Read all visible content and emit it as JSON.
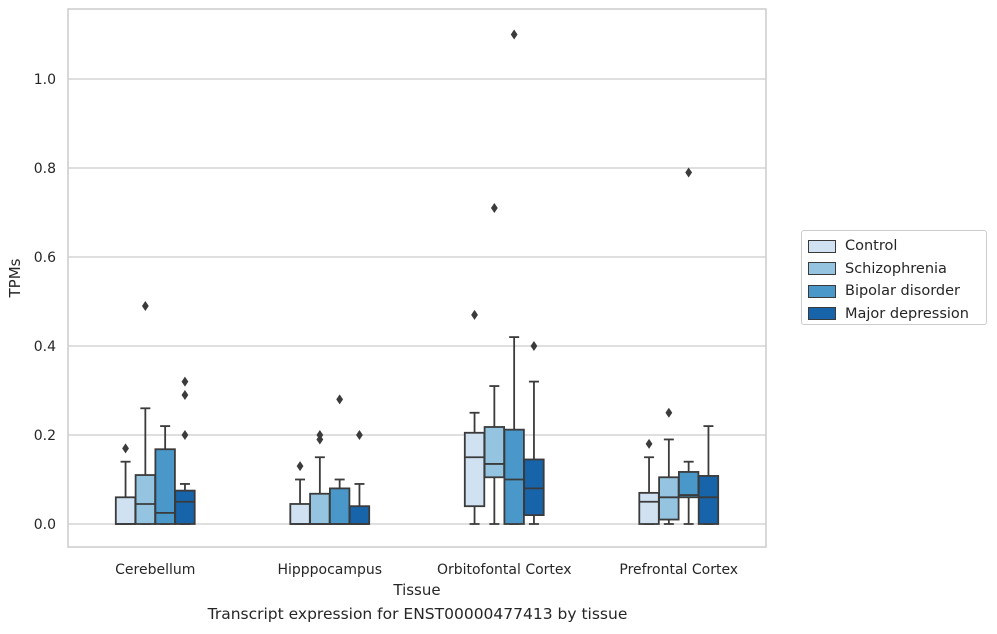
{
  "chart_data": {
    "type": "boxplot",
    "xlabel": "Tissue",
    "ylabel": "TPMs",
    "caption": "Transcript expression for ENST00000477413 by tissue",
    "ylim": [
      -0.055,
      1.165
    ],
    "yticks": [
      0.0,
      0.2,
      0.4,
      0.6,
      0.8,
      1.0
    ],
    "ytick_labels": [
      "0.0",
      "0.2",
      "0.4",
      "0.6",
      "0.8",
      "1.0"
    ],
    "grid": "horizontal",
    "legend_position": "right",
    "categories": [
      "Cerebellum",
      "Hipppocampus",
      "Orbitofontal Cortex",
      "Prefrontal Cortex"
    ],
    "series": [
      {
        "name": "Control",
        "color": "#d0e1f2",
        "boxes": [
          {
            "whislo": 0.0,
            "q1": 0.0,
            "med": 0.0,
            "q3": 0.06,
            "whishi": 0.14,
            "fliers": [
              0.17
            ]
          },
          {
            "whislo": 0.0,
            "q1": 0.0,
            "med": 0.0,
            "q3": 0.045,
            "whishi": 0.1,
            "fliers": [
              0.13
            ]
          },
          {
            "whislo": 0.0,
            "q1": 0.04,
            "med": 0.15,
            "q3": 0.205,
            "whishi": 0.25,
            "fliers": [
              0.47
            ]
          },
          {
            "whislo": 0.0,
            "q1": 0.0,
            "med": 0.05,
            "q3": 0.07,
            "whishi": 0.15,
            "fliers": [
              0.18
            ]
          }
        ]
      },
      {
        "name": "Schizophrenia",
        "color": "#94c4df",
        "boxes": [
          {
            "whislo": 0.0,
            "q1": 0.0,
            "med": 0.045,
            "q3": 0.11,
            "whishi": 0.26,
            "fliers": [
              0.49
            ]
          },
          {
            "whislo": 0.0,
            "q1": 0.0,
            "med": 0.0,
            "q3": 0.068,
            "whishi": 0.15,
            "fliers": [
              0.19,
              0.2
            ]
          },
          {
            "whislo": 0.0,
            "q1": 0.105,
            "med": 0.135,
            "q3": 0.218,
            "whishi": 0.31,
            "fliers": [
              0.71
            ]
          },
          {
            "whislo": 0.0,
            "q1": 0.01,
            "med": 0.06,
            "q3": 0.105,
            "whishi": 0.19,
            "fliers": [
              0.25
            ]
          }
        ]
      },
      {
        "name": "Bipolar disorder",
        "color": "#4a98c9",
        "boxes": [
          {
            "whislo": 0.0,
            "q1": 0.0,
            "med": 0.025,
            "q3": 0.168,
            "whishi": 0.22,
            "fliers": []
          },
          {
            "whislo": 0.0,
            "q1": 0.0,
            "med": 0.0,
            "q3": 0.08,
            "whishi": 0.1,
            "fliers": [
              0.28
            ]
          },
          {
            "whislo": 0.0,
            "q1": 0.0,
            "med": 0.1,
            "q3": 0.212,
            "whishi": 0.42,
            "fliers": [
              1.1
            ]
          },
          {
            "whislo": 0.0,
            "q1": 0.06,
            "med": 0.065,
            "q3": 0.117,
            "whishi": 0.14,
            "fliers": [
              0.79
            ]
          }
        ]
      },
      {
        "name": "Major depression",
        "color": "#1764ab",
        "boxes": [
          {
            "whislo": 0.0,
            "q1": 0.0,
            "med": 0.05,
            "q3": 0.075,
            "whishi": 0.09,
            "fliers": [
              0.2,
              0.29,
              0.32
            ]
          },
          {
            "whislo": 0.0,
            "q1": 0.0,
            "med": 0.0,
            "q3": 0.04,
            "whishi": 0.09,
            "fliers": [
              0.2
            ]
          },
          {
            "whislo": 0.0,
            "q1": 0.02,
            "med": 0.08,
            "q3": 0.145,
            "whishi": 0.32,
            "fliers": [
              0.4
            ]
          },
          {
            "whislo": 0.0,
            "q1": 0.0,
            "med": 0.06,
            "q3": 0.108,
            "whishi": 0.22,
            "fliers": []
          }
        ]
      }
    ]
  }
}
